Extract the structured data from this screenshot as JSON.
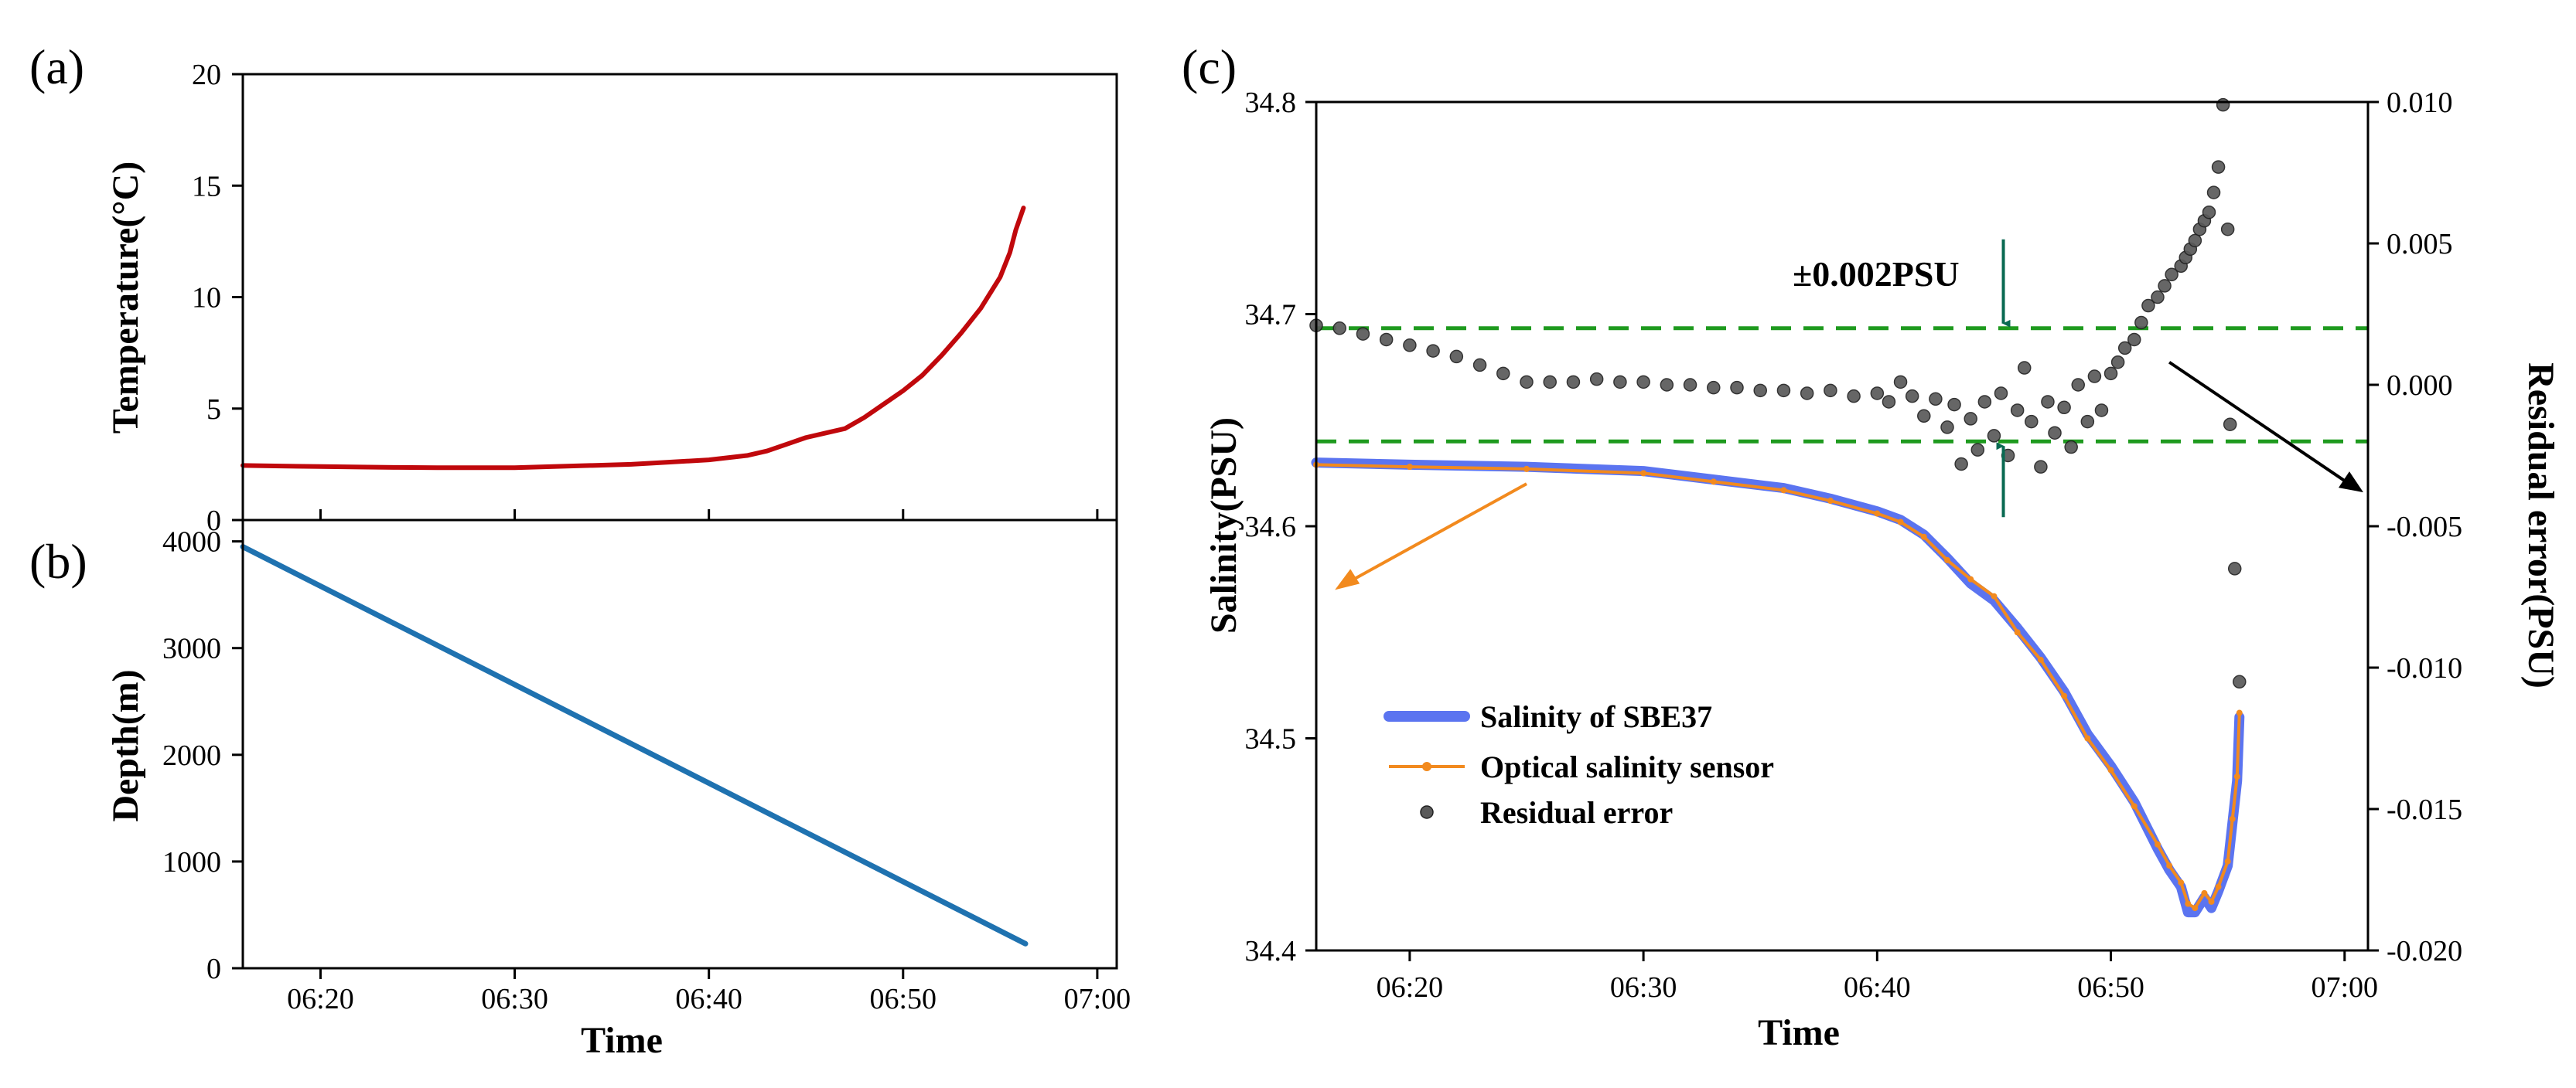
{
  "colors": {
    "temperature": "#c0080c",
    "depth": "#1f72b0",
    "sbe37": "#5b74f0",
    "optical": "#f28a1e",
    "residual": "#3a3a3a",
    "threshold": "#1e9a1e",
    "arrow_green": "#0a6a52",
    "arrow_orange": "#f28a1e",
    "arrow_black": "#000000"
  },
  "chart_data": [
    {
      "id": "a",
      "label": "(a)",
      "type": "line",
      "ylabel": "Temperature(°C)",
      "ylim": [
        0,
        20
      ],
      "yticks": [
        0,
        5,
        10,
        15,
        20
      ],
      "xlim": [
        16,
        61
      ],
      "xticks": [
        {
          "v": 20,
          "label": ""
        },
        {
          "v": 30,
          "label": ""
        },
        {
          "v": 40,
          "label": ""
        },
        {
          "v": 50,
          "label": ""
        },
        {
          "v": 60,
          "label": ""
        }
      ],
      "series": [
        {
          "name": "Temperature",
          "x": [
            16,
            18,
            20,
            22,
            24,
            26,
            28,
            30,
            32,
            34,
            36,
            38,
            40,
            41,
            42,
            43,
            44,
            45,
            46,
            47,
            48,
            49,
            50,
            51,
            52,
            53,
            54,
            54.5,
            55,
            55.5,
            55.8,
            56.2
          ],
          "values": [
            2.45,
            2.42,
            2.4,
            2.38,
            2.36,
            2.35,
            2.35,
            2.35,
            2.4,
            2.45,
            2.5,
            2.6,
            2.7,
            2.8,
            2.9,
            3.1,
            3.4,
            3.7,
            3.9,
            4.1,
            4.6,
            5.2,
            5.8,
            6.5,
            7.4,
            8.4,
            9.5,
            10.2,
            10.9,
            12.0,
            13.0,
            14.0
          ]
        }
      ]
    },
    {
      "id": "b",
      "label": "(b)",
      "type": "line",
      "ylabel": "Depth(m)",
      "xlabel": "Time",
      "ylim": [
        0,
        4200
      ],
      "yticks": [
        0,
        1000,
        2000,
        3000,
        4000
      ],
      "xlim": [
        16,
        61
      ],
      "xticks": [
        {
          "v": 20,
          "label": "06:20"
        },
        {
          "v": 30,
          "label": "06:30"
        },
        {
          "v": 40,
          "label": "06:40"
        },
        {
          "v": 50,
          "label": "06:50"
        },
        {
          "v": 60,
          "label": "07:00"
        }
      ],
      "series": [
        {
          "name": "Depth",
          "x": [
            16,
            56.3
          ],
          "values": [
            3950,
            230
          ]
        }
      ]
    },
    {
      "id": "c",
      "label": "(c)",
      "type": "line+scatter",
      "ylabel": "Salinity(PSU)",
      "y2label": "Residual error(PSU)",
      "xlabel": "Time",
      "ylim": [
        34.4,
        34.8
      ],
      "yticks": [
        "34.4",
        "34.5",
        "34.6",
        "34.7",
        "34.8"
      ],
      "y2lim": [
        -0.02,
        0.01
      ],
      "y2ticks": [
        "-0.020",
        "-0.015",
        "-0.010",
        "-0.005",
        "0.000",
        "0.005",
        "0.010"
      ],
      "xlim": [
        16,
        61
      ],
      "xticks": [
        {
          "v": 20,
          "label": "06:20"
        },
        {
          "v": 30,
          "label": "06:30"
        },
        {
          "v": 40,
          "label": "06:40"
        },
        {
          "v": 50,
          "label": "06:50"
        },
        {
          "v": 60,
          "label": "07:00"
        }
      ],
      "threshold_lines": [
        0.002,
        -0.002
      ],
      "annotation": "±0.002PSU",
      "legend": [
        {
          "name": "Salinity of SBE37",
          "marker": "thick-line"
        },
        {
          "name": "Optical salinity sensor",
          "marker": "line-dot"
        },
        {
          "name": "Residual error",
          "marker": "dot"
        }
      ],
      "series": [
        {
          "name": "Salinity of SBE37",
          "x": [
            16,
            20,
            25,
            30,
            33,
            36,
            38,
            40,
            41,
            42,
            43,
            44,
            45,
            46,
            47,
            48,
            49,
            50,
            51,
            52,
            52.5,
            53,
            53.3,
            53.6,
            54,
            54.3,
            54.6,
            55,
            55.2,
            55.4,
            55.5
          ],
          "values": [
            34.63,
            34.629,
            34.628,
            34.626,
            34.622,
            34.618,
            34.613,
            34.607,
            34.603,
            34.596,
            34.585,
            34.573,
            34.565,
            34.552,
            34.538,
            34.522,
            34.502,
            34.487,
            34.47,
            34.448,
            34.438,
            34.43,
            34.418,
            34.418,
            34.425,
            34.42,
            34.428,
            34.44,
            34.46,
            34.48,
            34.51
          ]
        },
        {
          "name": "Optical salinity sensor",
          "x": [
            16,
            20,
            25,
            30,
            33,
            36,
            38,
            40,
            41,
            42,
            43,
            44,
            45,
            46,
            47,
            48,
            49,
            50,
            51,
            52,
            52.5,
            53,
            53.3,
            53.6,
            54,
            54.3,
            54.6,
            55,
            55.2,
            55.4,
            55.5
          ],
          "values": [
            34.629,
            34.628,
            34.627,
            34.625,
            34.621,
            34.617,
            34.612,
            34.606,
            34.602,
            34.595,
            34.584,
            34.575,
            34.567,
            34.55,
            34.537,
            34.52,
            34.5,
            34.485,
            34.468,
            34.45,
            34.44,
            34.432,
            34.422,
            34.42,
            34.427,
            34.423,
            34.43,
            34.442,
            34.462,
            34.482,
            34.512
          ]
        },
        {
          "name": "Residual error",
          "x": [
            16,
            17,
            18,
            19,
            20,
            21,
            22,
            23,
            24,
            25,
            26,
            27,
            28,
            29,
            30,
            31,
            32,
            33,
            34,
            35,
            36,
            37,
            38,
            39,
            40,
            40.5,
            41,
            41.5,
            42,
            42.5,
            43,
            43.3,
            43.6,
            44,
            44.3,
            44.6,
            45,
            45.3,
            45.6,
            46,
            46.3,
            46.6,
            47,
            47.3,
            47.6,
            48,
            48.3,
            48.6,
            49,
            49.3,
            49.6,
            50,
            50.3,
            50.6,
            51,
            51.3,
            51.6,
            52,
            52.3,
            52.6,
            53,
            53.2,
            53.4,
            53.6,
            53.8,
            54,
            54.2,
            54.4,
            54.6,
            54.8,
            55,
            55.1,
            55.3,
            55.5
          ],
          "values": [
            0.0021,
            0.002,
            0.0018,
            0.0016,
            0.0014,
            0.0012,
            0.001,
            0.0007,
            0.0004,
            0.0001,
            0.0001,
            0.0001,
            0.0002,
            0.0001,
            0.0001,
            0.0,
            0.0,
            -0.0001,
            -0.0001,
            -0.0002,
            -0.0002,
            -0.0003,
            -0.0002,
            -0.0004,
            -0.0003,
            -0.0006,
            0.0001,
            -0.0004,
            -0.0011,
            -0.0005,
            -0.0015,
            -0.0007,
            -0.0028,
            -0.0012,
            -0.0023,
            -0.0006,
            -0.0018,
            -0.0003,
            -0.0025,
            -0.0009,
            0.0006,
            -0.0013,
            -0.0029,
            -0.0006,
            -0.0017,
            -0.0008,
            -0.0022,
            0.0,
            -0.0013,
            0.0003,
            -0.0009,
            0.0004,
            0.0008,
            0.0013,
            0.0016,
            0.0022,
            0.0028,
            0.0031,
            0.0035,
            0.0039,
            0.0042,
            0.0045,
            0.0048,
            0.0051,
            0.0055,
            0.0058,
            0.0061,
            0.0068,
            0.0077,
            0.0099,
            0.0055,
            -0.0014,
            -0.0065,
            -0.0105
          ]
        }
      ]
    }
  ]
}
